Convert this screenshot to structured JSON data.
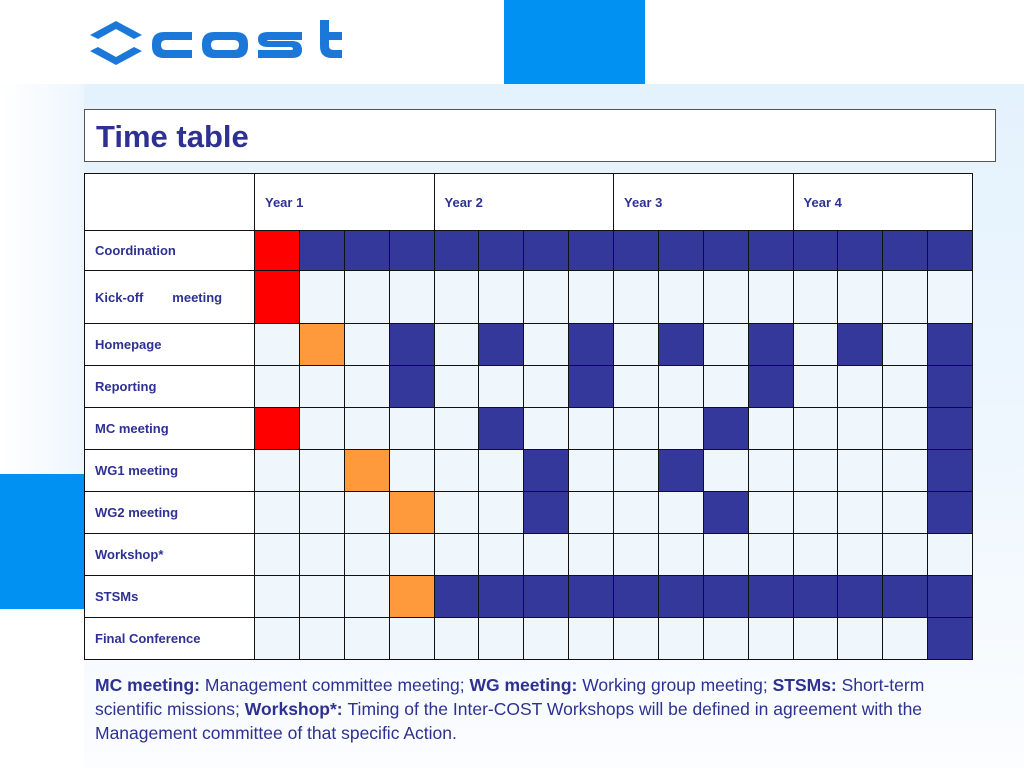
{
  "logo": {
    "text": "cost",
    "alt": "COST logo"
  },
  "title": "Time table",
  "table": {
    "years": [
      "Year 1",
      "Year 2",
      "Year 3",
      "Year 4"
    ],
    "rows": [
      {
        "label": "Coordination",
        "cells": [
          "red",
          "navy",
          "navy",
          "navy",
          "navy",
          "navy",
          "navy",
          "navy",
          "navy",
          "navy",
          "navy",
          "navy",
          "navy",
          "navy",
          "navy",
          "navy"
        ]
      },
      {
        "label": "Kick-off        meeting",
        "cells": [
          "red",
          "empty",
          "empty",
          "empty",
          "empty",
          "empty",
          "empty",
          "empty",
          "empty",
          "empty",
          "empty",
          "empty",
          "empty",
          "empty",
          "empty",
          "empty"
        ]
      },
      {
        "label": "Homepage",
        "cells": [
          "empty",
          "orange",
          "empty",
          "navy",
          "empty",
          "navy",
          "empty",
          "navy",
          "empty",
          "navy",
          "empty",
          "navy",
          "empty",
          "navy",
          "empty",
          "navy"
        ]
      },
      {
        "label": "Reporting",
        "cells": [
          "empty",
          "empty",
          "empty",
          "navy",
          "empty",
          "empty",
          "empty",
          "navy",
          "empty",
          "empty",
          "empty",
          "navy",
          "empty",
          "empty",
          "empty",
          "navy"
        ]
      },
      {
        "label": "MC meeting",
        "cells": [
          "red",
          "empty",
          "empty",
          "empty",
          "empty",
          "navy",
          "empty",
          "empty",
          "empty",
          "empty",
          "navy",
          "empty",
          "empty",
          "empty",
          "empty",
          "navy"
        ]
      },
      {
        "label": "WG1 meeting",
        "cells": [
          "empty",
          "empty",
          "orange",
          "empty",
          "empty",
          "empty",
          "navy",
          "empty",
          "empty",
          "navy",
          "empty",
          "empty",
          "empty",
          "empty",
          "empty",
          "navy"
        ]
      },
      {
        "label": "WG2 meeting",
        "cells": [
          "empty",
          "empty",
          "empty",
          "orange",
          "empty",
          "empty",
          "navy",
          "empty",
          "empty",
          "empty",
          "navy",
          "empty",
          "empty",
          "empty",
          "empty",
          "navy"
        ]
      },
      {
        "label": "Workshop*",
        "cells": [
          "empty",
          "empty",
          "empty",
          "empty",
          "empty",
          "empty",
          "empty",
          "empty",
          "empty",
          "empty",
          "empty",
          "empty",
          "empty",
          "empty",
          "empty",
          "empty"
        ]
      },
      {
        "label": "STSMs",
        "cells": [
          "empty",
          "empty",
          "empty",
          "orange",
          "navy",
          "navy",
          "navy",
          "navy",
          "navy",
          "navy",
          "navy",
          "navy",
          "navy",
          "navy",
          "navy",
          "navy"
        ]
      },
      {
        "label": "Final Conference",
        "cells": [
          "empty",
          "empty",
          "empty",
          "empty",
          "empty",
          "empty",
          "empty",
          "empty",
          "empty",
          "empty",
          "empty",
          "empty",
          "empty",
          "empty",
          "empty",
          "navy"
        ]
      }
    ]
  },
  "footnote": {
    "parts": [
      {
        "bold": true,
        "text": "MC meeting: "
      },
      {
        "bold": false,
        "text": "Management committee meeting; "
      },
      {
        "bold": true,
        "text": "WG meeting: "
      },
      {
        "bold": false,
        "text": "Working group meeting; "
      },
      {
        "bold": true,
        "text": "STSMs: "
      },
      {
        "bold": false,
        "text": "Short-term scientific missions; "
      },
      {
        "bold": true,
        "text": "Workshop*: "
      },
      {
        "bold": false,
        "text": "Timing of the Inter-COST Workshops will be defined in agreement with the Management committee of that specific Action."
      }
    ]
  },
  "colors": {
    "text": "#2e3192",
    "navy": "#33389a",
    "red": "#ff0000",
    "orange": "#ff9a3c",
    "accent": "#0091f2",
    "empty": "#eff7fd"
  }
}
